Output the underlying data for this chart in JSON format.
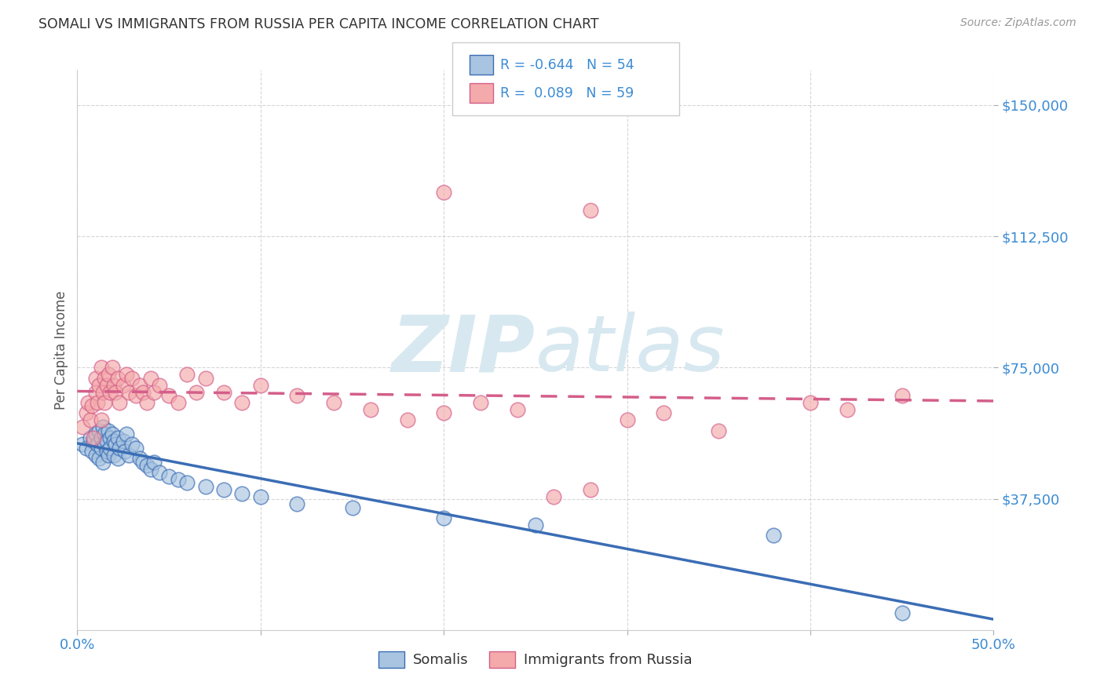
{
  "title": "SOMALI VS IMMIGRANTS FROM RUSSIA PER CAPITA INCOME CORRELATION CHART",
  "source": "Source: ZipAtlas.com",
  "ylabel": "Per Capita Income",
  "xlim": [
    0.0,
    0.5
  ],
  "ylim": [
    0,
    160000
  ],
  "legend_blue_r": "-0.644",
  "legend_blue_n": "54",
  "legend_pink_r": "0.089",
  "legend_pink_n": "59",
  "legend_blue_label": "Somalis",
  "legend_pink_label": "Immigrants from Russia",
  "blue_color": "#A8C4E0",
  "pink_color": "#F4AAAA",
  "line_blue_color": "#3B6DB5",
  "line_pink_color": "#D45E8A",
  "tick_color": "#3B8BD4",
  "watermark_color": "#D8E8F0",
  "somali_x": [
    0.003,
    0.005,
    0.007,
    0.008,
    0.009,
    0.01,
    0.01,
    0.011,
    0.012,
    0.012,
    0.013,
    0.013,
    0.014,
    0.014,
    0.015,
    0.015,
    0.016,
    0.016,
    0.017,
    0.017,
    0.018,
    0.018,
    0.019,
    0.02,
    0.02,
    0.021,
    0.022,
    0.022,
    0.023,
    0.025,
    0.026,
    0.027,
    0.028,
    0.03,
    0.032,
    0.034,
    0.036,
    0.038,
    0.04,
    0.042,
    0.045,
    0.05,
    0.055,
    0.06,
    0.07,
    0.08,
    0.09,
    0.1,
    0.12,
    0.15,
    0.2,
    0.25,
    0.38,
    0.45
  ],
  "somali_y": [
    53000,
    52000,
    55000,
    51000,
    54000,
    56000,
    50000,
    53000,
    57000,
    49000,
    55000,
    52000,
    58000,
    48000,
    56000,
    53000,
    54000,
    51000,
    57000,
    50000,
    55000,
    52000,
    56000,
    54000,
    50000,
    53000,
    55000,
    49000,
    52000,
    54000,
    51000,
    56000,
    50000,
    53000,
    52000,
    49000,
    48000,
    47000,
    46000,
    48000,
    45000,
    44000,
    43000,
    42000,
    41000,
    40000,
    39000,
    38000,
    36000,
    35000,
    32000,
    30000,
    27000,
    5000
  ],
  "russia_x": [
    0.003,
    0.005,
    0.006,
    0.007,
    0.008,
    0.009,
    0.01,
    0.01,
    0.011,
    0.012,
    0.013,
    0.013,
    0.014,
    0.015,
    0.015,
    0.016,
    0.017,
    0.018,
    0.019,
    0.02,
    0.021,
    0.022,
    0.023,
    0.025,
    0.027,
    0.028,
    0.03,
    0.032,
    0.034,
    0.036,
    0.038,
    0.04,
    0.042,
    0.045,
    0.05,
    0.055,
    0.06,
    0.065,
    0.07,
    0.08,
    0.09,
    0.1,
    0.12,
    0.14,
    0.16,
    0.18,
    0.2,
    0.22,
    0.24,
    0.26,
    0.28,
    0.3,
    0.32,
    0.35,
    0.4,
    0.42,
    0.45,
    0.2,
    0.28
  ],
  "russia_y": [
    58000,
    62000,
    65000,
    60000,
    64000,
    55000,
    68000,
    72000,
    65000,
    70000,
    75000,
    60000,
    68000,
    72000,
    65000,
    70000,
    73000,
    68000,
    75000,
    70000,
    68000,
    72000,
    65000,
    70000,
    73000,
    68000,
    72000,
    67000,
    70000,
    68000,
    65000,
    72000,
    68000,
    70000,
    67000,
    65000,
    73000,
    68000,
    72000,
    68000,
    65000,
    70000,
    67000,
    65000,
    63000,
    60000,
    62000,
    65000,
    63000,
    38000,
    40000,
    60000,
    62000,
    57000,
    65000,
    63000,
    67000,
    125000,
    120000
  ]
}
